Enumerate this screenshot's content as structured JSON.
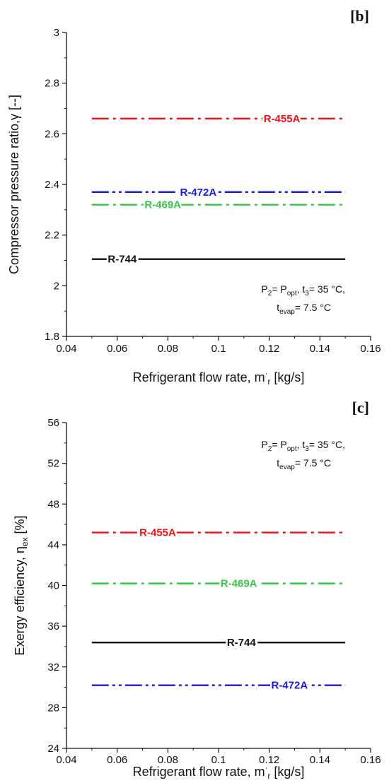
{
  "chart_data": [
    {
      "panel": "[b]",
      "type": "line",
      "xlabel_parts": [
        "Refrigerant flow rate, m",
        "·",
        "r",
        " [kg/s]"
      ],
      "ylabel_parts": [
        "Compressor pressure ratio,",
        "γ",
        " [--]"
      ],
      "xlim": [
        0.04,
        0.16
      ],
      "ylim": [
        1.8,
        3.0
      ],
      "xticks": [
        "0.04",
        "0.06",
        "0.08",
        "0.1",
        "0.12",
        "0.14",
        "0.16"
      ],
      "yticks": [
        "1.8",
        "2",
        "2.2",
        "2.4",
        "2.6",
        "2.8",
        "3"
      ],
      "note": {
        "line1": [
          "P",
          "2",
          "= P",
          "opt",
          ", t",
          "3",
          "= 35 °C,"
        ],
        "line2": [
          "t",
          "evap",
          "= 7.5 °C"
        ]
      },
      "series": [
        {
          "name": "R-455A",
          "color": "#e8141b",
          "x": [
            0.05,
            0.15
          ],
          "y": [
            2.66,
            2.66
          ],
          "dash": "dashdot",
          "label_x": 0.125
        },
        {
          "name": "R-472A",
          "color": "#1b1bd6",
          "x": [
            0.05,
            0.15
          ],
          "y": [
            2.37,
            2.37
          ],
          "dash": "dashdotdot",
          "label_x": 0.092
        },
        {
          "name": "R-469A",
          "color": "#3bc44a",
          "x": [
            0.05,
            0.15
          ],
          "y": [
            2.32,
            2.32
          ],
          "dash": "dashdot",
          "label_x": 0.078
        },
        {
          "name": "R-744",
          "color": "#111111",
          "x": [
            0.05,
            0.15
          ],
          "y": [
            2.105,
            2.105
          ],
          "dash": "solid",
          "label_x": 0.062
        }
      ]
    },
    {
      "panel": "[c]",
      "type": "line",
      "xlabel_parts": [
        "Refrigerant flow rate, m",
        "·",
        "r",
        " [kg/s]"
      ],
      "ylabel_parts": [
        "Exergy efficiency, ",
        "η",
        "ex",
        " [%]"
      ],
      "xlim": [
        0.04,
        0.16
      ],
      "ylim": [
        24,
        56
      ],
      "xticks": [
        "0.04",
        "0.06",
        "0.08",
        "0.1",
        "0.12",
        "0.14",
        "0.16"
      ],
      "yticks": [
        "24",
        "28",
        "32",
        "36",
        "40",
        "44",
        "48",
        "52",
        "56"
      ],
      "note": {
        "line1": [
          "P",
          "2",
          "= P",
          "opt",
          ", t",
          "3",
          "= 35 °C,"
        ],
        "line2": [
          "t",
          "evap",
          "= 7.5 °C"
        ]
      },
      "series": [
        {
          "name": "R-455A",
          "color": "#e8141b",
          "x": [
            0.05,
            0.15
          ],
          "y": [
            45.2,
            45.2
          ],
          "dash": "dashdot",
          "label_x": 0.076
        },
        {
          "name": "R-469A",
          "color": "#3bc44a",
          "x": [
            0.05,
            0.15
          ],
          "y": [
            40.2,
            40.2
          ],
          "dash": "dashdot",
          "label_x": 0.108
        },
        {
          "name": "R-744",
          "color": "#111111",
          "x": [
            0.05,
            0.15
          ],
          "y": [
            34.4,
            34.4
          ],
          "dash": "solid",
          "label_x": 0.109
        },
        {
          "name": "R-472A",
          "color": "#1b1bd6",
          "x": [
            0.05,
            0.15
          ],
          "y": [
            30.2,
            30.2
          ],
          "dash": "dashdotdot",
          "label_x": 0.128
        }
      ]
    }
  ]
}
